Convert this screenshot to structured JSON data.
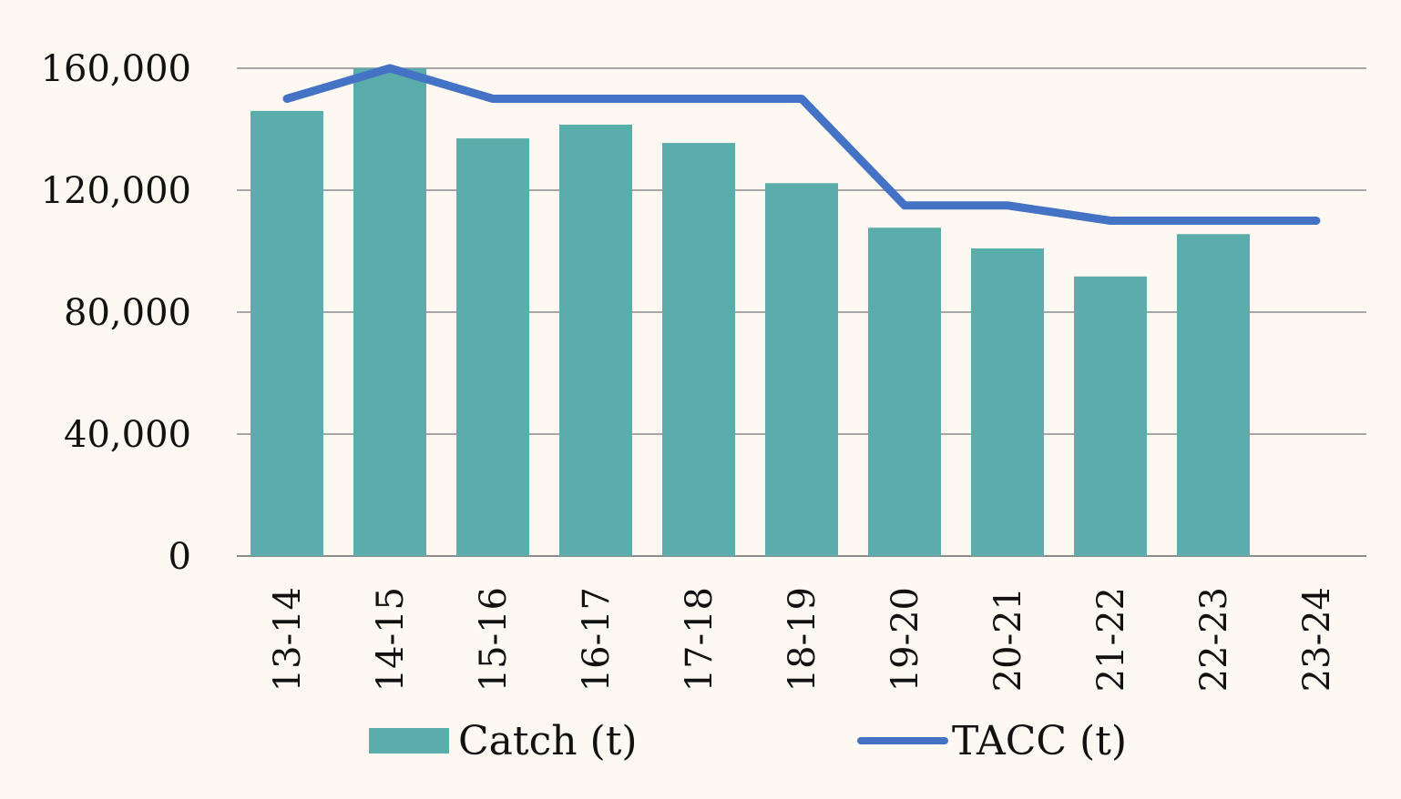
{
  "chart_data": {
    "type": "bar",
    "categories": [
      "13-14",
      "14-15",
      "15-16",
      "16-17",
      "17-18",
      "18-19",
      "19-20",
      "20-21",
      "21-22",
      "22-23",
      "23-24"
    ],
    "series": [
      {
        "name": "Catch (t)",
        "type": "bar",
        "color": "#5aadaa",
        "values": [
          146000,
          160000,
          137000,
          141500,
          135500,
          122300,
          107700,
          100900,
          91700,
          105600,
          null
        ]
      },
      {
        "name": "TACC (t)",
        "type": "line",
        "color": "#4472c4",
        "values": [
          150000,
          160000,
          150000,
          150000,
          150000,
          150000,
          115000,
          115000,
          110000,
          110000,
          110000
        ]
      }
    ],
    "yticks": [
      0,
      40000,
      80000,
      120000,
      160000
    ],
    "ytick_labels": [
      "0",
      "40,000",
      "80,000",
      "120,000",
      "160,000"
    ],
    "ylim": [
      0,
      160000
    ],
    "grid": true,
    "legend_position": "bottom",
    "title": "",
    "xlabel": "",
    "ylabel": ""
  }
}
